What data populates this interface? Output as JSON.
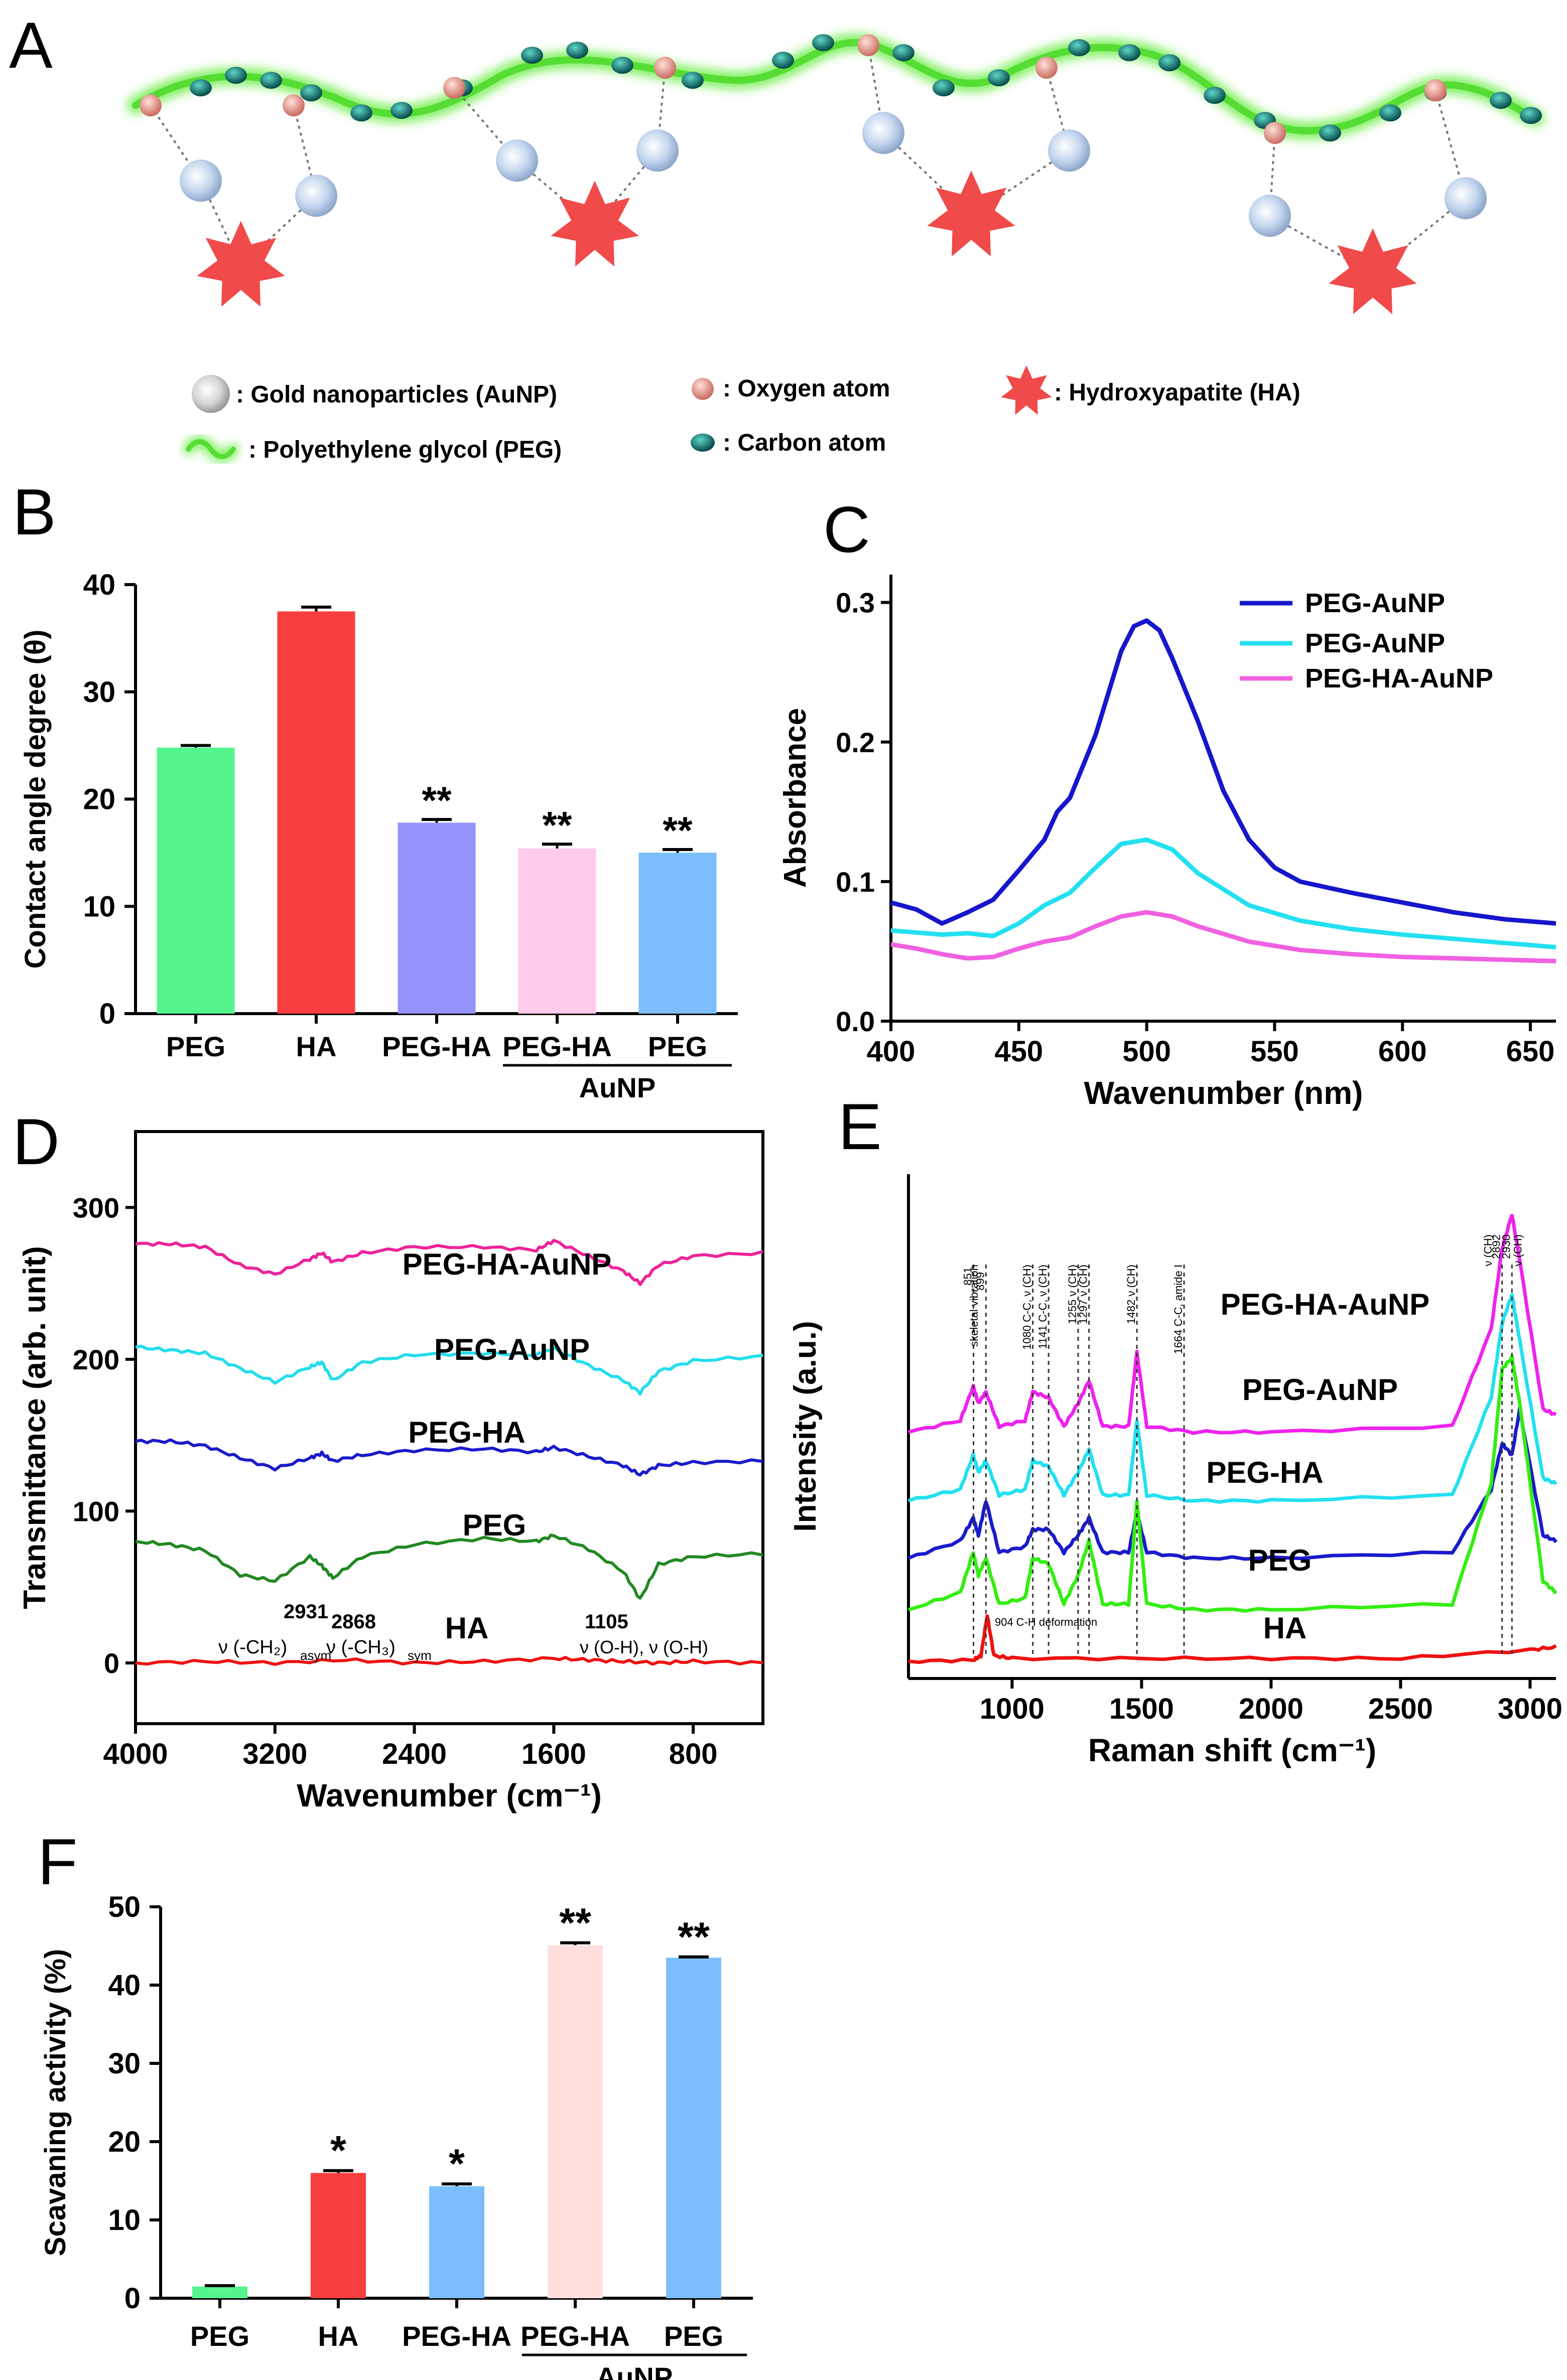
{
  "panels": {
    "a": "A",
    "b": "B",
    "c": "C",
    "d": "D",
    "e": "E",
    "f": "F"
  },
  "schematic": {
    "legend": [
      {
        "key": "aunp",
        "text": ": Gold nanoparticles (AuNP)"
      },
      {
        "key": "oxygen",
        "text": ": Oxygen atom"
      },
      {
        "key": "ha",
        "text": ": Hydroxyapatite (HA)"
      },
      {
        "key": "peg",
        "text": ": Polyethylene glycol (PEG)"
      },
      {
        "key": "carbon",
        "text": ": Carbon atom"
      }
    ],
    "colors": {
      "peg": "#66ee44",
      "oxygen": "#e89a8a",
      "carbon": "#0d7a7a",
      "aunp": "#c8d8f0",
      "ha": "#f04a4a"
    }
  },
  "chart_data": [
    {
      "id": "B",
      "type": "bar",
      "categories": [
        "PEG",
        "HA",
        "PEG-HA",
        "PEG-HA",
        "PEG"
      ],
      "group_label": "AuNP",
      "values": [
        24.8,
        37.5,
        17.8,
        15.4,
        15.0
      ],
      "errors": [
        0.2,
        0.4,
        0.3,
        0.4,
        0.3
      ],
      "significance": [
        "",
        "",
        "**",
        "**",
        "**"
      ],
      "colors": [
        "#55f58e",
        "#f83e3e",
        "#9393fb",
        "#ffcaeb",
        "#7bbefb"
      ],
      "ylabel": "Contact angle degree (θ)",
      "ylim": [
        0,
        40
      ],
      "yticks": [
        0,
        10,
        20,
        30,
        40
      ]
    },
    {
      "id": "C",
      "type": "line",
      "xlabel": "Wavenumber (nm)",
      "ylabel": "Absorbance",
      "xlim": [
        400,
        660
      ],
      "ylim": [
        0,
        0.32
      ],
      "xticks": [
        400,
        450,
        500,
        550,
        600,
        650
      ],
      "yticks": [
        0.0,
        0.1,
        0.2,
        0.3
      ],
      "series": [
        {
          "name": "PEG-AuNP",
          "color": "#1616cc",
          "x": [
            400,
            410,
            420,
            430,
            440,
            450,
            460,
            465,
            470,
            480,
            490,
            495,
            500,
            505,
            510,
            520,
            530,
            540,
            550,
            560,
            580,
            600,
            620,
            640,
            660
          ],
          "y": [
            0.085,
            0.08,
            0.07,
            0.078,
            0.087,
            0.108,
            0.13,
            0.15,
            0.16,
            0.205,
            0.265,
            0.283,
            0.287,
            0.28,
            0.26,
            0.215,
            0.165,
            0.13,
            0.11,
            0.1,
            0.092,
            0.085,
            0.078,
            0.073,
            0.07
          ]
        },
        {
          "name": "PEG-AuNP",
          "color": "#22e0f0",
          "x": [
            400,
            420,
            430,
            440,
            450,
            460,
            470,
            480,
            490,
            500,
            510,
            520,
            540,
            560,
            580,
            600,
            620,
            640,
            660
          ],
          "y": [
            0.065,
            0.062,
            0.063,
            0.061,
            0.07,
            0.083,
            0.092,
            0.11,
            0.127,
            0.13,
            0.123,
            0.106,
            0.083,
            0.072,
            0.066,
            0.062,
            0.059,
            0.056,
            0.053
          ]
        },
        {
          "name": "PEG-HA-AuNP",
          "color": "#f060e0",
          "x": [
            400,
            410,
            420,
            430,
            440,
            450,
            460,
            470,
            480,
            490,
            500,
            510,
            520,
            540,
            560,
            580,
            600,
            620,
            640,
            660
          ],
          "y": [
            0.055,
            0.052,
            0.048,
            0.045,
            0.046,
            0.052,
            0.057,
            0.06,
            0.068,
            0.075,
            0.078,
            0.075,
            0.068,
            0.057,
            0.051,
            0.048,
            0.046,
            0.045,
            0.044,
            0.043
          ]
        }
      ]
    },
    {
      "id": "D",
      "type": "line",
      "xlabel": "Wavenumber (cm⁻¹)",
      "ylabel": "Transmittance (arb. unit)",
      "xlim": [
        4000,
        400
      ],
      "ylim": [
        -40,
        350
      ],
      "xticks": [
        4000,
        3200,
        2400,
        1600,
        800
      ],
      "yticks": [
        0,
        100,
        200,
        300
      ],
      "series": [
        {
          "name": "PEG-HA-AuNP",
          "color": "#ee2299",
          "x": [
            4000,
            3800,
            3600,
            3400,
            3200,
            3000,
            2931,
            2868,
            2700,
            2400,
            2000,
            1700,
            1600,
            1400,
            1200,
            1105,
            1000,
            800,
            400
          ],
          "y": [
            276,
            276,
            274,
            262,
            256,
            266,
            270,
            264,
            270,
            274,
            274,
            272,
            278,
            268,
            258,
            250,
            262,
            268,
            270
          ]
        },
        {
          "name": "PEG-AuNP",
          "color": "#22ddee",
          "x": [
            4000,
            3800,
            3600,
            3400,
            3200,
            3000,
            2931,
            2868,
            2700,
            2400,
            2000,
            1700,
            1600,
            1400,
            1200,
            1105,
            1000,
            800,
            400
          ],
          "y": [
            208,
            206,
            204,
            194,
            185,
            195,
            198,
            186,
            198,
            203,
            204,
            203,
            207,
            196,
            186,
            178,
            192,
            199,
            202
          ]
        },
        {
          "name": "PEG-HA",
          "color": "#1a1acc",
          "x": [
            4000,
            3800,
            3600,
            3400,
            3200,
            3000,
            2931,
            2868,
            2700,
            2400,
            2000,
            1700,
            1600,
            1400,
            1200,
            1105,
            1000,
            800,
            400
          ],
          "y": [
            146,
            146,
            143,
            135,
            128,
            135,
            138,
            133,
            137,
            140,
            141,
            139,
            142,
            136,
            130,
            124,
            130,
            132,
            133
          ]
        },
        {
          "name": "PEG",
          "color": "#228822",
          "x": [
            4000,
            3800,
            3600,
            3400,
            3200,
            3000,
            2931,
            2868,
            2700,
            2400,
            2000,
            1700,
            1600,
            1400,
            1200,
            1105,
            1000,
            800,
            400
          ],
          "y": [
            80,
            78,
            74,
            58,
            54,
            70,
            64,
            56,
            70,
            78,
            82,
            80,
            84,
            75,
            60,
            42,
            65,
            70,
            72
          ]
        },
        {
          "name": "HA",
          "color": "#ee1111",
          "x": [
            4000,
            3600,
            3200,
            2800,
            2400,
            2000,
            1600,
            1400,
            1200,
            1000,
            800,
            400
          ],
          "y": [
            0,
            1,
            0,
            2,
            0,
            1,
            3,
            2,
            1,
            0,
            1,
            0
          ]
        }
      ],
      "annotations": [
        "2931",
        "2868",
        "ν (-CH₂)",
        "asym",
        "ν (-CH₃)",
        "sym",
        "1105",
        "ν (O-H), ν (O-H)"
      ]
    },
    {
      "id": "E",
      "type": "line",
      "xlabel": "Raman shift (cm⁻¹)",
      "ylabel": "Intensity (a.u.)",
      "xlim": [
        600,
        3100
      ],
      "xticks": [
        1000,
        1500,
        2000,
        2500,
        3000
      ],
      "series": [
        {
          "name": "PEG-HA-AuNP",
          "color": "#ee22ee",
          "offset": 4,
          "x": [
            600,
            800,
            850,
            870,
            899,
            950,
            1050,
            1080,
            1141,
            1200,
            1255,
            1297,
            1350,
            1450,
            1482,
            1520,
            1700,
            2000,
            2700,
            2850,
            2892,
            2930,
            2960,
            3050,
            3100
          ],
          "y": [
            0,
            0.2,
            0.8,
            0.5,
            0.7,
            0.1,
            0.2,
            0.7,
            0.6,
            0.1,
            0.5,
            0.9,
            0.1,
            0.1,
            1.4,
            0.1,
            0,
            0,
            0.1,
            1.8,
            3.2,
            3.8,
            3.0,
            0.4,
            0.3
          ]
        },
        {
          "name": "PEG-AuNP",
          "color": "#22e0f0",
          "offset": 2.8,
          "x": [
            600,
            800,
            850,
            870,
            899,
            950,
            1050,
            1080,
            1141,
            1200,
            1255,
            1297,
            1350,
            1450,
            1482,
            1520,
            1700,
            2000,
            2700,
            2850,
            2892,
            2930,
            2960,
            3050,
            3100
          ],
          "y": [
            0,
            0.2,
            0.8,
            0.5,
            0.7,
            0.1,
            0.2,
            0.7,
            0.6,
            0.1,
            0.5,
            0.9,
            0.1,
            0.1,
            1.4,
            0.1,
            0,
            0,
            0.1,
            1.8,
            3.1,
            3.6,
            2.8,
            0.4,
            0.3
          ]
        },
        {
          "name": "PEG-HA",
          "color": "#1a1acc",
          "offset": 1.8,
          "x": [
            600,
            800,
            850,
            870,
            899,
            950,
            1050,
            1080,
            1141,
            1200,
            1255,
            1297,
            1350,
            1450,
            1482,
            1520,
            1700,
            2000,
            2700,
            2850,
            2892,
            2930,
            2960,
            3050,
            3100
          ],
          "y": [
            0,
            0.3,
            0.7,
            0.4,
            1.0,
            0.1,
            0.2,
            0.5,
            0.5,
            0.1,
            0.4,
            0.7,
            0.1,
            0.1,
            0.8,
            0.1,
            0,
            0,
            0.1,
            1.2,
            2.0,
            1.8,
            2.6,
            0.4,
            0.3
          ]
        },
        {
          "name": "PEG",
          "color": "#33ee11",
          "offset": 0.9,
          "x": [
            600,
            800,
            850,
            870,
            899,
            950,
            1050,
            1080,
            1141,
            1200,
            1255,
            1297,
            1350,
            1450,
            1482,
            1520,
            1700,
            2000,
            2700,
            2850,
            2892,
            2930,
            2960,
            3050,
            3100
          ],
          "y": [
            0,
            0.3,
            1.0,
            0.6,
            0.9,
            0.1,
            0.2,
            0.9,
            0.8,
            0.1,
            0.6,
            1.2,
            0.1,
            0.1,
            1.9,
            0.1,
            0,
            0,
            0.1,
            2.2,
            4.2,
            4.4,
            3.6,
            0.5,
            0.3
          ]
        },
        {
          "name": "HA",
          "color": "#ee1111",
          "offset": 0,
          "x": [
            600,
            850,
            880,
            904,
            930,
            1000,
            1500,
            2000,
            2500,
            3000,
            3100
          ],
          "y": [
            0,
            0.02,
            0.1,
            0.8,
            0.1,
            0.05,
            0.05,
            0.05,
            0.05,
            0.2,
            0.25
          ]
        }
      ],
      "annotations": [
        "851",
        "skeletal vibration",
        "899",
        "1080 C-C, ν (CH)",
        "1141 C-C, ν (CH)",
        "1255 ν (CH)",
        "1297 ν (CH)",
        "1482 ν (CH)",
        "1664 C-C, amide I",
        "904 C-H deformation",
        "ν (CH)",
        "2892",
        "2930",
        "ν (CH)"
      ]
    },
    {
      "id": "F",
      "type": "bar",
      "categories": [
        "PEG",
        "HA",
        "PEG-HA",
        "PEG-HA",
        "PEG"
      ],
      "group_label": "AuNP",
      "values": [
        1.5,
        16.0,
        14.3,
        45.1,
        43.5
      ],
      "errors": [
        0.1,
        0.3,
        0.3,
        0.3,
        0.1
      ],
      "significance": [
        "",
        "*",
        "*",
        "**",
        "**"
      ],
      "colors": [
        "#55f58e",
        "#f83e3e",
        "#7bbefb",
        "#ffdede",
        "#7bbefb"
      ],
      "ylabel": "Scavaning activity (%)",
      "ylim": [
        0,
        50
      ],
      "yticks": [
        0,
        10,
        20,
        30,
        40,
        50
      ]
    }
  ]
}
